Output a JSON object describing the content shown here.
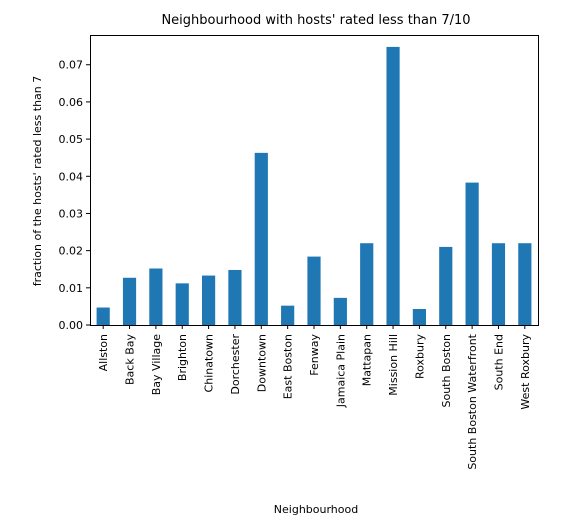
{
  "chart_data": {
    "type": "bar",
    "title": "Neighbourhood with hosts' rated less than 7/10",
    "xlabel": "Neighbourhood",
    "ylabel": "fraction of the hosts' rated less than 7",
    "ylim": [
      0,
      0.078
    ],
    "yticks": [
      "0.00",
      "0.01",
      "0.02",
      "0.03",
      "0.04",
      "0.05",
      "0.06",
      "0.07"
    ],
    "grid": false,
    "legend": "none",
    "bar_color": "#1f77b4",
    "categories": [
      "Allston",
      "Back Bay",
      "Bay Village",
      "Brighton",
      "Chinatown",
      "Dorchester",
      "Downtown",
      "East Boston",
      "Fenway",
      "Jamaica Plain",
      "Mattapan",
      "Mission Hill",
      "Roxbury",
      "South Boston",
      "South Boston Waterfront",
      "South End",
      "West Roxbury"
    ],
    "values": [
      0.0047,
      0.0127,
      0.0152,
      0.0112,
      0.0133,
      0.0148,
      0.0463,
      0.0052,
      0.0184,
      0.0073,
      0.022,
      0.0748,
      0.0043,
      0.021,
      0.0383,
      0.022,
      0.022
    ]
  }
}
